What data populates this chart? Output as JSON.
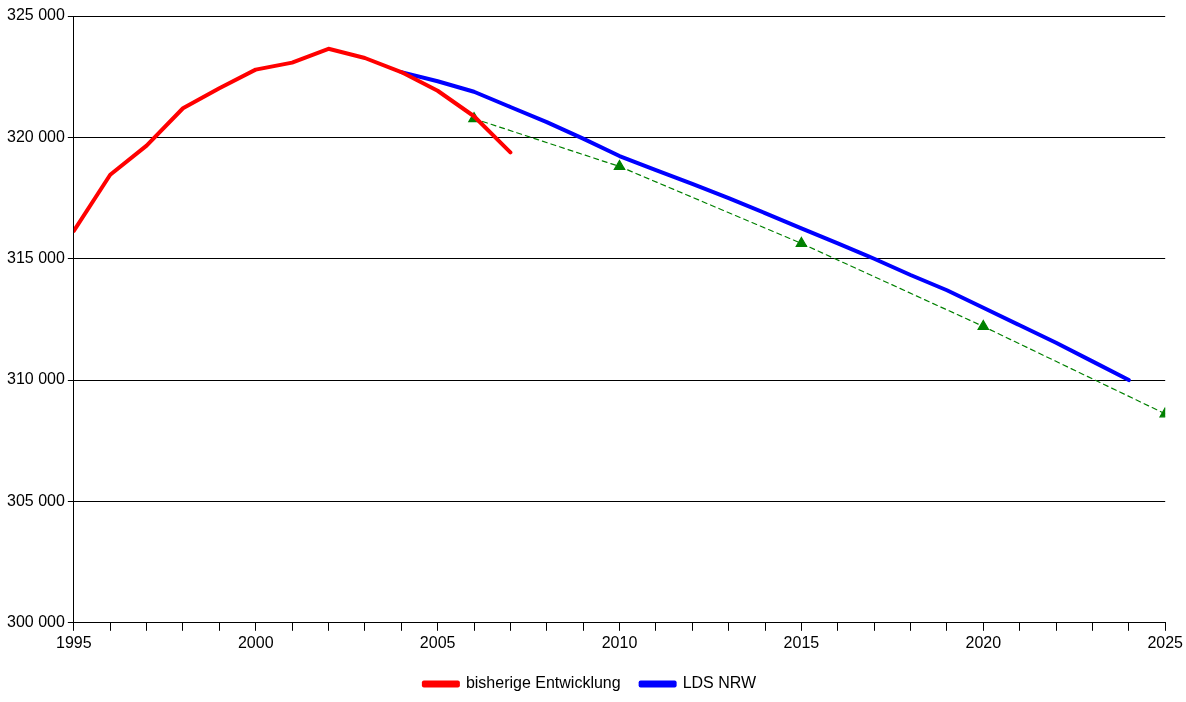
{
  "chart_data": {
    "type": "line",
    "xlim": [
      1995,
      2025
    ],
    "ylim": [
      300000,
      325000
    ],
    "xticks": [
      1995,
      {
        "value": 1996,
        "label": null
      },
      {
        "value": 1997,
        "label": null
      },
      {
        "value": 1998,
        "label": null
      },
      {
        "value": 1999,
        "label": null
      },
      2000,
      {
        "value": 2001,
        "label": null
      },
      {
        "value": 2002,
        "label": null
      },
      {
        "value": 2003,
        "label": null
      },
      {
        "value": 2004,
        "label": null
      },
      2005,
      {
        "value": 2006,
        "label": null
      },
      {
        "value": 2007,
        "label": null
      },
      {
        "value": 2008,
        "label": null
      },
      {
        "value": 2009,
        "label": null
      },
      2010,
      {
        "value": 2011,
        "label": null
      },
      {
        "value": 2012,
        "label": null
      },
      {
        "value": 2013,
        "label": null
      },
      {
        "value": 2014,
        "label": null
      },
      2015,
      {
        "value": 2016,
        "label": null
      },
      {
        "value": 2017,
        "label": null
      },
      {
        "value": 2018,
        "label": null
      },
      {
        "value": 2019,
        "label": null
      },
      2020,
      {
        "value": 2021,
        "label": null
      },
      {
        "value": 2022,
        "label": null
      },
      {
        "value": 2023,
        "label": null
      },
      {
        "value": 2024,
        "label": null
      },
      2025
    ],
    "yticks": [
      {
        "value": 300000,
        "label": "300 000"
      },
      {
        "value": 305000,
        "label": "305 000"
      },
      {
        "value": 310000,
        "label": "310 000"
      },
      {
        "value": 315000,
        "label": "315 000"
      },
      {
        "value": 320000,
        "label": "320 000"
      },
      {
        "value": 325000,
        "label": "325 000"
      }
    ],
    "grid": "y",
    "legend": "bottom",
    "marker": "none",
    "line_style": "solid",
    "series": [
      {
        "name": "bisherige Entwicklung",
        "color": "#ff0000",
        "x": [
          1995,
          1996,
          1997,
          1998,
          1999,
          2000,
          2001,
          2002,
          2003,
          2004,
          2005,
          2006,
          2007
        ],
        "values": [
          316150,
          318460,
          319660,
          321200,
          322020,
          322790,
          323080,
          323650,
          323270,
          322690,
          321920,
          320870,
          319380
        ]
      },
      {
        "name": "LDS NRW",
        "color": "#0000ff",
        "x": [
          2004,
          2005,
          2006,
          2007,
          2008,
          2009,
          2010,
          2011,
          2012,
          2013,
          2014,
          2015,
          2016,
          2017,
          2018,
          2019,
          2020,
          2021,
          2022,
          2023,
          2024
        ],
        "values": [
          322690,
          322310,
          321880,
          321250,
          320630,
          319950,
          319230,
          318650,
          318080,
          317500,
          316880,
          316250,
          315630,
          315000,
          314330,
          313700,
          312980,
          312260,
          311540,
          310770,
          310000
        ]
      },
      {
        "color": "#008000",
        "marker": "triangle",
        "line_style": "dashed",
        "x": [
          2006,
          2010,
          2015,
          2020,
          2025
        ],
        "values": [
          320770,
          318800,
          315630,
          312210,
          308610
        ]
      }
    ]
  }
}
